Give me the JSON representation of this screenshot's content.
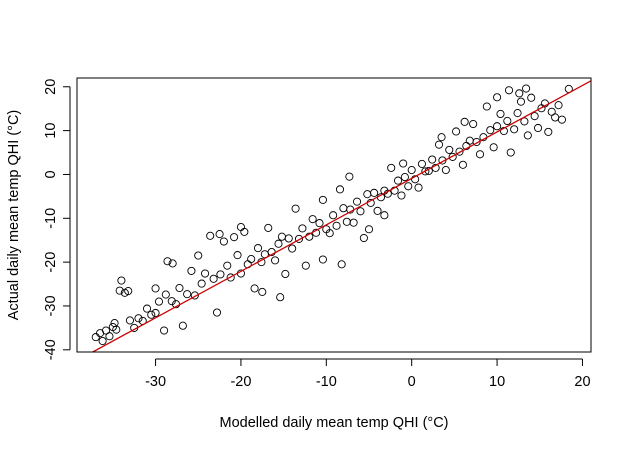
{
  "chart_data": {
    "type": "scatter",
    "title": "",
    "xlabel": "Modelled daily mean temp QHI (°C)",
    "ylabel": "Actual daily mean temp QHI (°C)",
    "xlim": [
      -39.2,
      21.0
    ],
    "ylim": [
      -40.5,
      22.0
    ],
    "x_ticks": [
      -30,
      -20,
      -10,
      0,
      10,
      20
    ],
    "y_ticks": [
      -40,
      -30,
      -20,
      -10,
      0,
      10,
      20
    ],
    "grid": false,
    "legend": "none",
    "marker": "open-circle",
    "point_color": "#000000",
    "reference_line": {
      "type": "abline",
      "intercept": -0.9,
      "slope": 1.06,
      "color": "#cc0000"
    },
    "series": [
      {
        "points": [
          [
            -37.0,
            -37.1
          ],
          [
            -36.5,
            -36.2
          ],
          [
            -36.2,
            -38.0
          ],
          [
            -35.8,
            -35.6
          ],
          [
            -35.4,
            -36.9
          ],
          [
            -35.0,
            -34.8
          ],
          [
            -34.6,
            -35.4
          ],
          [
            -34.8,
            -33.9
          ],
          [
            -34.2,
            -26.5
          ],
          [
            -34.0,
            -24.2
          ],
          [
            -33.6,
            -27.0
          ],
          [
            -33.2,
            -26.6
          ],
          [
            -33.0,
            -33.3
          ],
          [
            -32.5,
            -35.0
          ],
          [
            -32.0,
            -32.8
          ],
          [
            -31.5,
            -33.4
          ],
          [
            -31.0,
            -30.6
          ],
          [
            -30.5,
            -32.0
          ],
          [
            -30.0,
            -31.6
          ],
          [
            -29.6,
            -29.0
          ],
          [
            -29.0,
            -35.6
          ],
          [
            -28.6,
            -19.8
          ],
          [
            -28.8,
            -27.4
          ],
          [
            -28.1,
            -28.9
          ],
          [
            -27.6,
            -29.6
          ],
          [
            -27.2,
            -25.9
          ],
          [
            -26.8,
            -34.5
          ],
          [
            -26.3,
            -27.3
          ],
          [
            -25.8,
            -22.0
          ],
          [
            -25.4,
            -27.6
          ],
          [
            -25.0,
            -18.5
          ],
          [
            -24.6,
            -24.9
          ],
          [
            -24.2,
            -22.6
          ],
          [
            -23.6,
            -14.0
          ],
          [
            -23.2,
            -23.8
          ],
          [
            -22.8,
            -31.5
          ],
          [
            -22.4,
            -22.8
          ],
          [
            -22.0,
            -15.3
          ],
          [
            -21.6,
            -20.8
          ],
          [
            -21.2,
            -23.5
          ],
          [
            -20.8,
            -14.3
          ],
          [
            -20.4,
            -18.4
          ],
          [
            -20.0,
            -22.6
          ],
          [
            -19.6,
            -13.1
          ],
          [
            -19.2,
            -20.5
          ],
          [
            -18.8,
            -19.3
          ],
          [
            -18.4,
            -26.0
          ],
          [
            -18.0,
            -16.8
          ],
          [
            -17.6,
            -20.0
          ],
          [
            -17.2,
            -18.2
          ],
          [
            -16.8,
            -12.2
          ],
          [
            -16.4,
            -17.7
          ],
          [
            -16.0,
            -19.6
          ],
          [
            -15.6,
            -15.8
          ],
          [
            -15.2,
            -14.2
          ],
          [
            -14.8,
            -22.7
          ],
          [
            -14.4,
            -14.6
          ],
          [
            -14.0,
            -16.9
          ],
          [
            -13.6,
            -7.8
          ],
          [
            -13.2,
            -14.7
          ],
          [
            -12.8,
            -12.3
          ],
          [
            -12.4,
            -20.8
          ],
          [
            -12.0,
            -14.2
          ],
          [
            -11.6,
            -10.2
          ],
          [
            -11.2,
            -13.3
          ],
          [
            -10.8,
            -11.1
          ],
          [
            -10.4,
            -5.8
          ],
          [
            -10.0,
            -12.5
          ],
          [
            -9.6,
            -13.4
          ],
          [
            -9.2,
            -9.3
          ],
          [
            -8.8,
            -11.7
          ],
          [
            -8.4,
            -3.4
          ],
          [
            -8.0,
            -7.7
          ],
          [
            -7.6,
            -10.8
          ],
          [
            -7.2,
            -8.0
          ],
          [
            -6.8,
            -11.0
          ],
          [
            -6.4,
            -6.2
          ],
          [
            -6.0,
            -8.4
          ],
          [
            -5.6,
            -14.5
          ],
          [
            -5.2,
            -4.5
          ],
          [
            -4.8,
            -6.5
          ],
          [
            -4.4,
            -4.2
          ],
          [
            -4.0,
            -8.3
          ],
          [
            -3.6,
            -5.2
          ],
          [
            -3.2,
            -3.7
          ],
          [
            -2.8,
            -4.4
          ],
          [
            -2.4,
            1.5
          ],
          [
            -2.0,
            -3.7
          ],
          [
            -1.6,
            -1.4
          ],
          [
            -1.2,
            -4.8
          ],
          [
            -0.8,
            -0.6
          ],
          [
            -0.4,
            -2.7
          ],
          [
            0.0,
            1.0
          ],
          [
            0.4,
            -1.1
          ],
          [
            0.8,
            -3.0
          ],
          [
            1.2,
            2.4
          ],
          [
            1.6,
            0.7
          ],
          [
            2.0,
            0.8
          ],
          [
            2.4,
            3.4
          ],
          [
            2.8,
            1.5
          ],
          [
            3.2,
            6.8
          ],
          [
            3.6,
            3.2
          ],
          [
            4.0,
            1.0
          ],
          [
            4.4,
            5.6
          ],
          [
            4.8,
            4.0
          ],
          [
            5.2,
            9.8
          ],
          [
            5.6,
            5.2
          ],
          [
            6.0,
            2.2
          ],
          [
            6.4,
            6.5
          ],
          [
            6.8,
            7.7
          ],
          [
            7.2,
            11.5
          ],
          [
            7.6,
            7.4
          ],
          [
            8.0,
            4.6
          ],
          [
            8.4,
            8.5
          ],
          [
            8.8,
            15.5
          ],
          [
            9.2,
            10.1
          ],
          [
            9.6,
            6.2
          ],
          [
            10.0,
            11.0
          ],
          [
            10.4,
            13.8
          ],
          [
            10.8,
            9.9
          ],
          [
            11.2,
            12.2
          ],
          [
            11.6,
            5.0
          ],
          [
            12.0,
            10.3
          ],
          [
            12.4,
            14.0
          ],
          [
            12.8,
            16.6
          ],
          [
            13.2,
            12.1
          ],
          [
            13.6,
            8.9
          ],
          [
            14.0,
            17.5
          ],
          [
            14.4,
            13.3
          ],
          [
            14.8,
            10.6
          ],
          [
            15.2,
            15.1
          ],
          [
            15.6,
            16.2
          ],
          [
            16.0,
            9.7
          ],
          [
            16.4,
            14.3
          ],
          [
            16.8,
            13.0
          ],
          [
            17.2,
            15.8
          ],
          [
            17.6,
            12.5
          ],
          [
            18.4,
            19.5
          ],
          [
            13.4,
            19.6
          ],
          [
            11.4,
            19.2
          ],
          [
            10.0,
            17.6
          ],
          [
            12.6,
            18.5
          ],
          [
            -15.4,
            -28.0
          ],
          [
            -17.5,
            -26.8
          ],
          [
            -10.4,
            -19.4
          ],
          [
            -8.2,
            -20.5
          ],
          [
            -28.0,
            -20.3
          ],
          [
            -30.0,
            -26.0
          ],
          [
            -20.0,
            -12.0
          ],
          [
            -22.5,
            -13.6
          ],
          [
            -5.0,
            -12.5
          ],
          [
            -3.2,
            -9.3
          ],
          [
            3.5,
            8.5
          ],
          [
            6.2,
            12.0
          ],
          [
            -1.0,
            2.5
          ],
          [
            -7.3,
            -0.5
          ]
        ]
      }
    ]
  }
}
